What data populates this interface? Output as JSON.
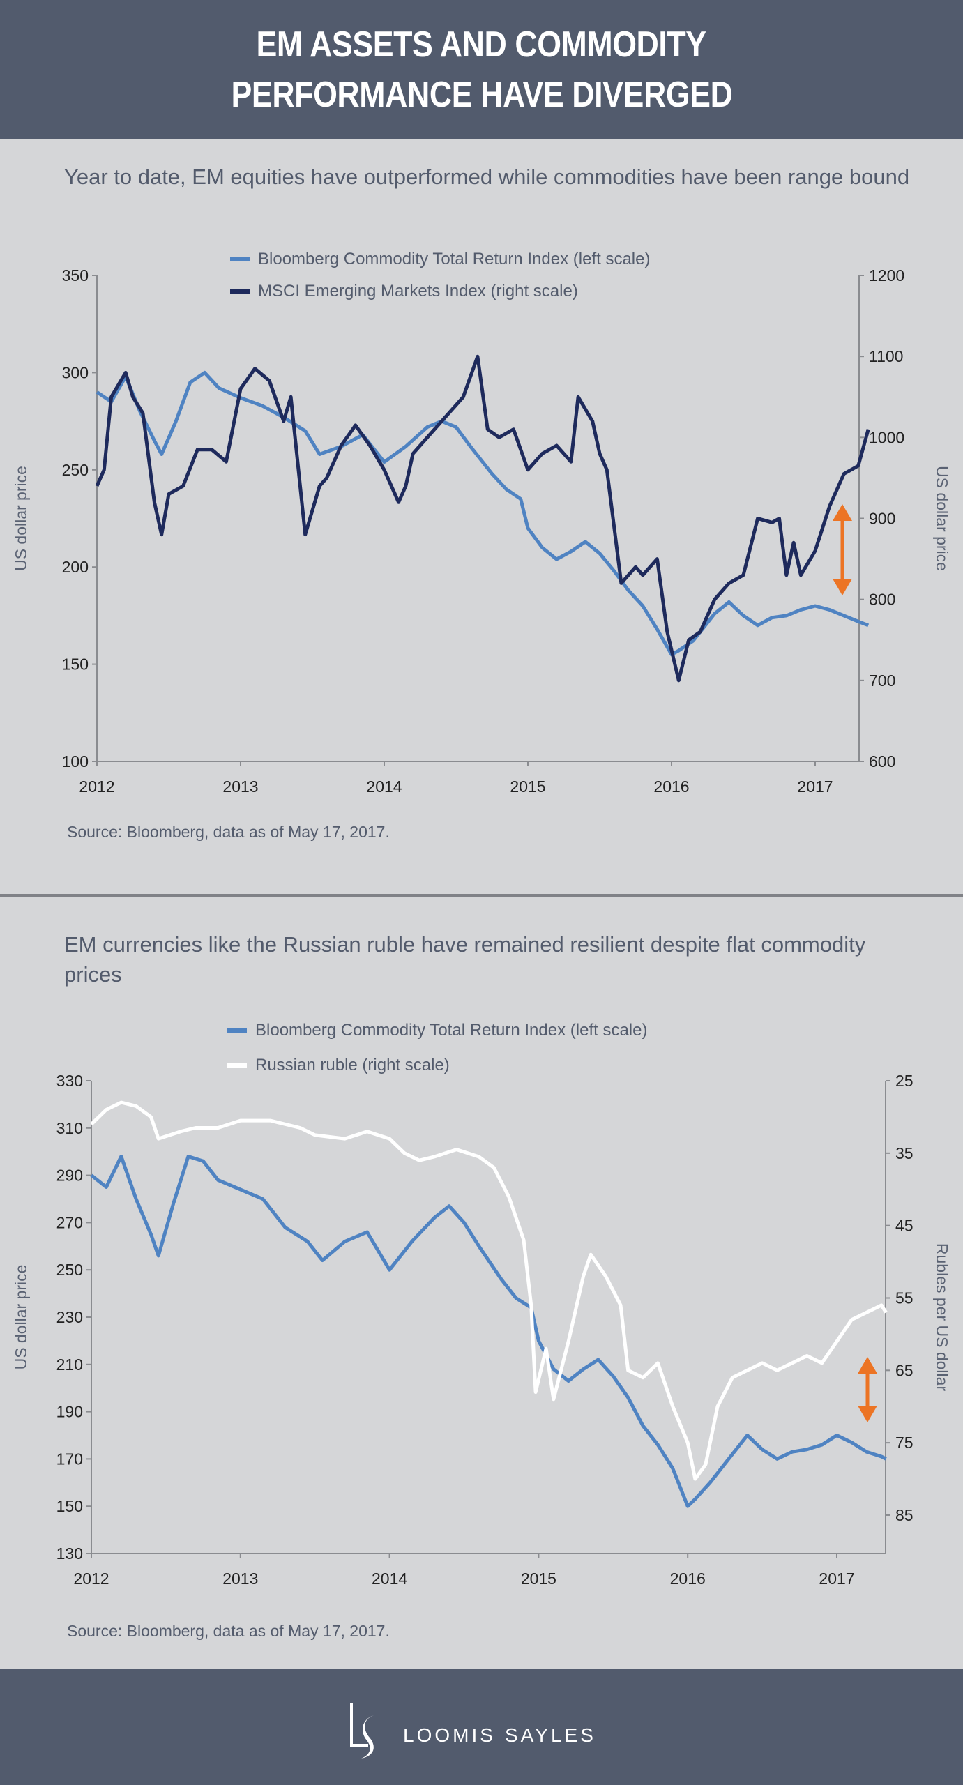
{
  "header": {
    "title_line1": "EM ASSETS AND COMMODITY",
    "title_line2": "PERFORMANCE HAVE DIVERGED"
  },
  "colors": {
    "header_bg": "#525b6d",
    "commodity": "#4f83c2",
    "msci": "#1e2a5c",
    "ruble": "#ffffff",
    "arrow": "#ec7424",
    "axis": "#8a8c90"
  },
  "chart_data": [
    {
      "type": "line",
      "title": "Year to date, EM equities have outperformed while commodities have been range bound",
      "ylabel": "US dollar price",
      "ylabel_right": "US dollar price",
      "source": "Source: Bloomberg, data as of May 17, 2017.",
      "xlim": [
        2012,
        2017.43
      ],
      "x_ticks": [
        2012,
        2013,
        2014,
        2015,
        2016,
        2017
      ],
      "x_tick_labels": [
        "2012",
        "2013",
        "2014",
        "2015",
        "2016",
        "2017"
      ],
      "ylim": [
        100,
        350
      ],
      "y_ticks": [
        "100",
        "150",
        "200",
        "250",
        "300",
        "350"
      ],
      "ylim_right": [
        600,
        1200
      ],
      "y_ticks_right": [
        "600",
        "700",
        "800",
        "900",
        "1000",
        "1100",
        "1200"
      ],
      "legend_position": "top-center",
      "series": [
        {
          "name": "Bloomberg Commodity Total Return Index (left scale)",
          "axis": "left",
          "x": [
            2012.0,
            2012.1,
            2012.2,
            2012.3,
            2012.4,
            2012.45,
            2012.55,
            2012.65,
            2012.75,
            2012.85,
            2013.0,
            2013.15,
            2013.3,
            2013.45,
            2013.55,
            2013.7,
            2013.85,
            2014.0,
            2014.15,
            2014.3,
            2014.4,
            2014.5,
            2014.6,
            2014.75,
            2014.85,
            2014.95,
            2015.0,
            2015.1,
            2015.2,
            2015.3,
            2015.4,
            2015.5,
            2015.6,
            2015.7,
            2015.8,
            2015.9,
            2016.0,
            2016.05,
            2016.15,
            2016.3,
            2016.4,
            2016.5,
            2016.6,
            2016.7,
            2016.8,
            2016.9,
            2017.0,
            2017.1,
            2017.2,
            2017.3,
            2017.37
          ],
          "y": [
            290,
            285,
            298,
            280,
            265,
            258,
            275,
            295,
            300,
            292,
            287,
            283,
            277,
            270,
            258,
            262,
            268,
            254,
            262,
            272,
            275,
            272,
            262,
            248,
            240,
            235,
            220,
            210,
            204,
            208,
            213,
            207,
            198,
            188,
            180,
            168,
            155,
            157,
            162,
            176,
            182,
            175,
            170,
            174,
            175,
            178,
            180,
            178,
            175,
            172,
            170
          ]
        },
        {
          "name": "MSCI Emerging Markets Index (right scale)",
          "axis": "right",
          "x": [
            2012.0,
            2012.05,
            2012.1,
            2012.2,
            2012.25,
            2012.32,
            2012.4,
            2012.45,
            2012.5,
            2012.6,
            2012.7,
            2012.8,
            2012.9,
            2013.0,
            2013.1,
            2013.2,
            2013.3,
            2013.35,
            2013.45,
            2013.55,
            2013.6,
            2013.7,
            2013.8,
            2013.9,
            2014.0,
            2014.1,
            2014.15,
            2014.2,
            2014.3,
            2014.45,
            2014.55,
            2014.65,
            2014.72,
            2014.8,
            2014.9,
            2015.0,
            2015.1,
            2015.2,
            2015.3,
            2015.35,
            2015.45,
            2015.5,
            2015.55,
            2015.65,
            2015.75,
            2015.8,
            2015.9,
            2015.97,
            2016.05,
            2016.12,
            2016.2,
            2016.3,
            2016.4,
            2016.5,
            2016.6,
            2016.7,
            2016.75,
            2016.8,
            2016.85,
            2016.9,
            2017.0,
            2017.1,
            2017.2,
            2017.3,
            2017.37
          ],
          "y": [
            940,
            960,
            1050,
            1080,
            1050,
            1030,
            920,
            880,
            930,
            940,
            985,
            985,
            970,
            1060,
            1085,
            1070,
            1020,
            1050,
            880,
            940,
            950,
            990,
            1015,
            990,
            960,
            920,
            940,
            980,
            1000,
            1030,
            1050,
            1100,
            1010,
            1000,
            1010,
            960,
            980,
            990,
            970,
            1050,
            1020,
            980,
            960,
            820,
            840,
            830,
            850,
            760,
            700,
            750,
            760,
            800,
            820,
            830,
            900,
            895,
            900,
            830,
            870,
            830,
            860,
            915,
            955,
            965,
            1010
          ]
        }
      ]
    },
    {
      "type": "line",
      "title": "EM currencies like the Russian ruble have remained resilient despite flat commodity prices",
      "ylabel": "US dollar price",
      "ylabel_right": "Rubles per US dollar",
      "source": "Source: Bloomberg, data as of May 17, 2017.",
      "xlim": [
        2012,
        2017.33
      ],
      "x_ticks": [
        2012,
        2013,
        2014,
        2015,
        2016,
        2017
      ],
      "x_tick_labels": [
        "2012",
        "2013",
        "2014",
        "2015",
        "2016",
        "2017"
      ],
      "ylim": [
        130,
        330
      ],
      "y_ticks": [
        "130",
        "150",
        "170",
        "190",
        "210",
        "230",
        "250",
        "270",
        "290",
        "310",
        "330"
      ],
      "ylim_right": [
        25,
        90.3
      ],
      "y_ticks_right": [
        "25",
        "35",
        "45",
        "55",
        "65",
        "75",
        "85"
      ],
      "right_inverted": true,
      "legend_position": "top-center",
      "series": [
        {
          "name": "Bloomberg Commodity Total Return Index (left scale)",
          "axis": "left",
          "x": [
            2012.0,
            2012.1,
            2012.2,
            2012.3,
            2012.4,
            2012.45,
            2012.55,
            2012.65,
            2012.75,
            2012.85,
            2013.0,
            2013.15,
            2013.3,
            2013.45,
            2013.55,
            2013.7,
            2013.85,
            2014.0,
            2014.15,
            2014.3,
            2014.4,
            2014.5,
            2014.6,
            2014.75,
            2014.85,
            2014.95,
            2015.0,
            2015.1,
            2015.2,
            2015.3,
            2015.4,
            2015.5,
            2015.6,
            2015.7,
            2015.8,
            2015.9,
            2016.0,
            2016.05,
            2016.15,
            2016.3,
            2016.4,
            2016.5,
            2016.6,
            2016.7,
            2016.8,
            2016.9,
            2017.0,
            2017.1,
            2017.2,
            2017.3,
            2017.33
          ],
          "y": [
            290,
            285,
            298,
            280,
            265,
            256,
            278,
            298,
            296,
            288,
            284,
            280,
            268,
            262,
            254,
            262,
            266,
            250,
            262,
            272,
            277,
            270,
            260,
            246,
            238,
            234,
            220,
            208,
            203,
            208,
            212,
            205,
            196,
            184,
            176,
            166,
            150,
            153,
            160,
            172,
            180,
            174,
            170,
            173,
            174,
            176,
            180,
            177,
            173,
            171,
            170
          ]
        },
        {
          "name": "Russian ruble (right scale)",
          "axis": "right",
          "x": [
            2012.0,
            2012.1,
            2012.2,
            2012.3,
            2012.4,
            2012.45,
            2012.6,
            2012.7,
            2012.85,
            2013.0,
            2013.2,
            2013.4,
            2013.5,
            2013.7,
            2013.85,
            2014.0,
            2014.1,
            2014.2,
            2014.3,
            2014.45,
            2014.6,
            2014.7,
            2014.8,
            2014.9,
            2014.95,
            2014.98,
            2015.05,
            2015.1,
            2015.2,
            2015.3,
            2015.35,
            2015.45,
            2015.55,
            2015.6,
            2015.7,
            2015.8,
            2015.9,
            2016.0,
            2016.05,
            2016.12,
            2016.2,
            2016.3,
            2016.4,
            2016.5,
            2016.6,
            2016.7,
            2016.8,
            2016.9,
            2017.0,
            2017.1,
            2017.2,
            2017.3,
            2017.33
          ],
          "y": [
            31,
            29,
            28,
            28.5,
            30,
            33,
            32,
            31.5,
            31.5,
            30.5,
            30.5,
            31.5,
            32.5,
            33,
            32,
            33,
            35,
            36,
            35.5,
            34.5,
            35.5,
            37,
            41,
            47,
            56,
            68,
            62,
            69,
            61,
            52,
            49,
            52,
            56,
            65,
            66,
            64,
            70,
            75,
            80,
            78,
            70,
            66,
            65,
            64,
            65,
            64,
            63,
            64,
            61,
            58,
            57,
            56,
            57
          ]
        }
      ]
    }
  ],
  "footer": {
    "brand_left": "LOOMIS",
    "brand_right": "SAYLES",
    "monogram": "LS"
  }
}
